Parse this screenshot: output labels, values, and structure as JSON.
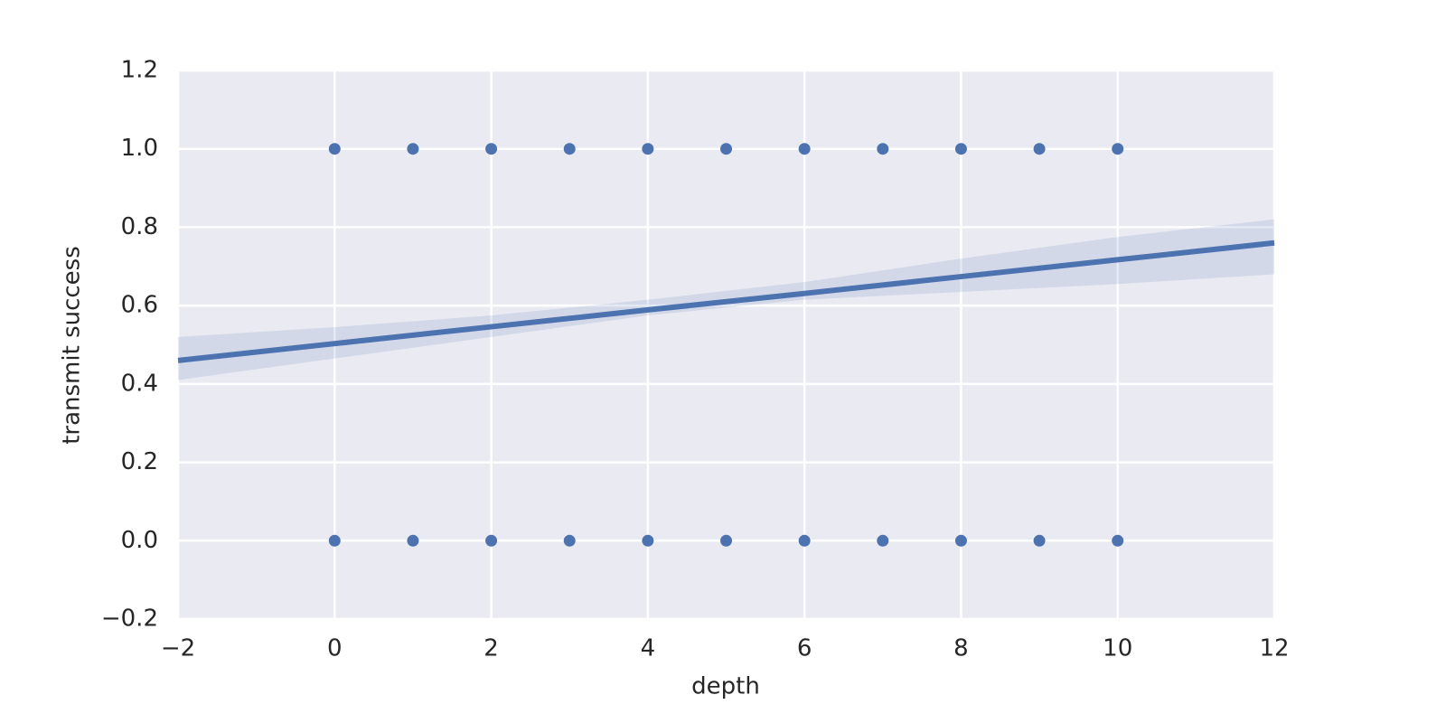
{
  "chart_data": {
    "type": "scatter",
    "xlabel": "depth",
    "ylabel": "transmit success",
    "xlim": [
      -2,
      12
    ],
    "ylim": [
      -0.2,
      1.2
    ],
    "xticks": [
      {
        "value": -2,
        "label": "−2"
      },
      0,
      2,
      4,
      6,
      8,
      10,
      12
    ],
    "yticks": [
      {
        "value": -0.2,
        "label": "−0.2"
      },
      {
        "value": 0,
        "label": "0.0"
      },
      0.2,
      0.4,
      0.6,
      0.8,
      {
        "value": 1,
        "label": "1.0"
      },
      1.2
    ],
    "grid": true,
    "background": "#eaeaf2",
    "series": [
      {
        "type": "scatter",
        "color": "#4c72b0",
        "x": [
          0,
          1,
          2,
          3,
          4,
          5,
          6,
          7,
          8,
          9,
          10,
          0,
          1,
          2,
          3,
          4,
          5,
          6,
          7,
          8,
          9,
          10
        ],
        "values": [
          1,
          1,
          1,
          1,
          1,
          1,
          1,
          1,
          1,
          1,
          1,
          0,
          0,
          0,
          0,
          0,
          0,
          0,
          0,
          0,
          0,
          0
        ]
      },
      {
        "type": "line",
        "color": "#4c72b0",
        "x": [
          -2,
          0,
          2,
          4,
          6,
          8,
          10,
          12
        ],
        "values": [
          0.46,
          0.503,
          0.546,
          0.589,
          0.631,
          0.674,
          0.717,
          0.76
        ],
        "lower": [
          0.41,
          0.465,
          0.52,
          0.575,
          0.615,
          0.635,
          0.655,
          0.68
        ],
        "upper": [
          0.52,
          0.545,
          0.575,
          0.615,
          0.66,
          0.72,
          0.775,
          0.82
        ]
      }
    ]
  }
}
